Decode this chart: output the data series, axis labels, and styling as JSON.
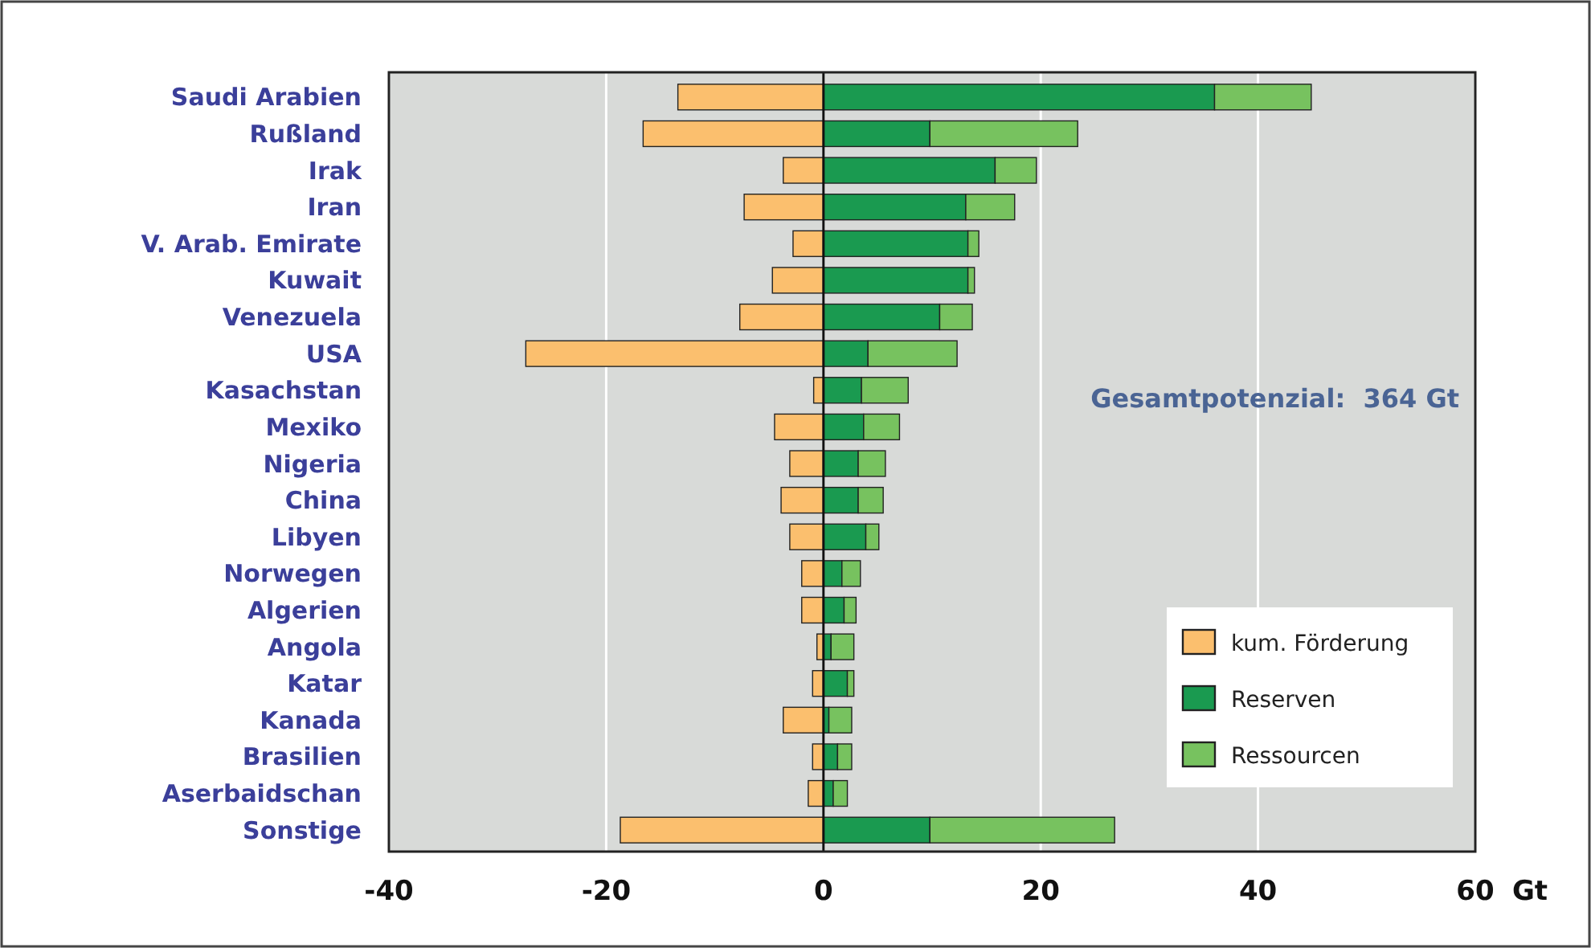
{
  "chart_data": {
    "type": "bar",
    "orientation": "horizontal",
    "stacked": true,
    "xlabel": "Gt",
    "categories": [
      "Saudi Arabien",
      "Rußland",
      "Irak",
      "Iran",
      "V. Arab. Emirate",
      "Kuwait",
      "Venezuela",
      "USA",
      "Kasachstan",
      "Mexiko",
      "Nigeria",
      "China",
      "Libyen",
      "Norwegen",
      "Algerien",
      "Angola",
      "Katar",
      "Kanada",
      "Brasilien",
      "Aserbaidschan",
      "Sonstige"
    ],
    "series": [
      {
        "name": "kum. Förderung",
        "color": "#fbbf6e",
        "values": [
          -13.4,
          -16.6,
          -3.7,
          -7.3,
          -2.8,
          -4.7,
          -7.7,
          -27.4,
          -0.9,
          -4.5,
          -3.1,
          -3.9,
          -3.1,
          -2.0,
          -2.0,
          -0.6,
          -1.0,
          -3.7,
          -1.0,
          -1.4,
          -18.7
        ]
      },
      {
        "name": "Reserven",
        "color": "#1a9a50",
        "values": [
          36.0,
          9.8,
          15.8,
          13.1,
          13.3,
          13.3,
          10.7,
          4.1,
          3.5,
          3.7,
          3.2,
          3.2,
          3.9,
          1.7,
          1.9,
          0.7,
          2.2,
          0.5,
          1.3,
          0.9,
          9.8
        ]
      },
      {
        "name": "Ressourcen",
        "color": "#77c25f",
        "values": [
          8.9,
          13.6,
          3.8,
          4.5,
          1.0,
          0.6,
          3.0,
          8.2,
          4.3,
          3.3,
          2.5,
          2.3,
          1.2,
          1.7,
          1.1,
          2.1,
          0.6,
          2.1,
          1.3,
          1.3,
          17.0
        ]
      }
    ],
    "xlim": [
      -40,
      60
    ],
    "xticks": [
      -40,
      -20,
      0,
      20,
      40,
      60
    ],
    "grid": "x",
    "legend": "bottom right",
    "annotations": [
      "Gesamtpotenzial:  364 Gt"
    ]
  }
}
